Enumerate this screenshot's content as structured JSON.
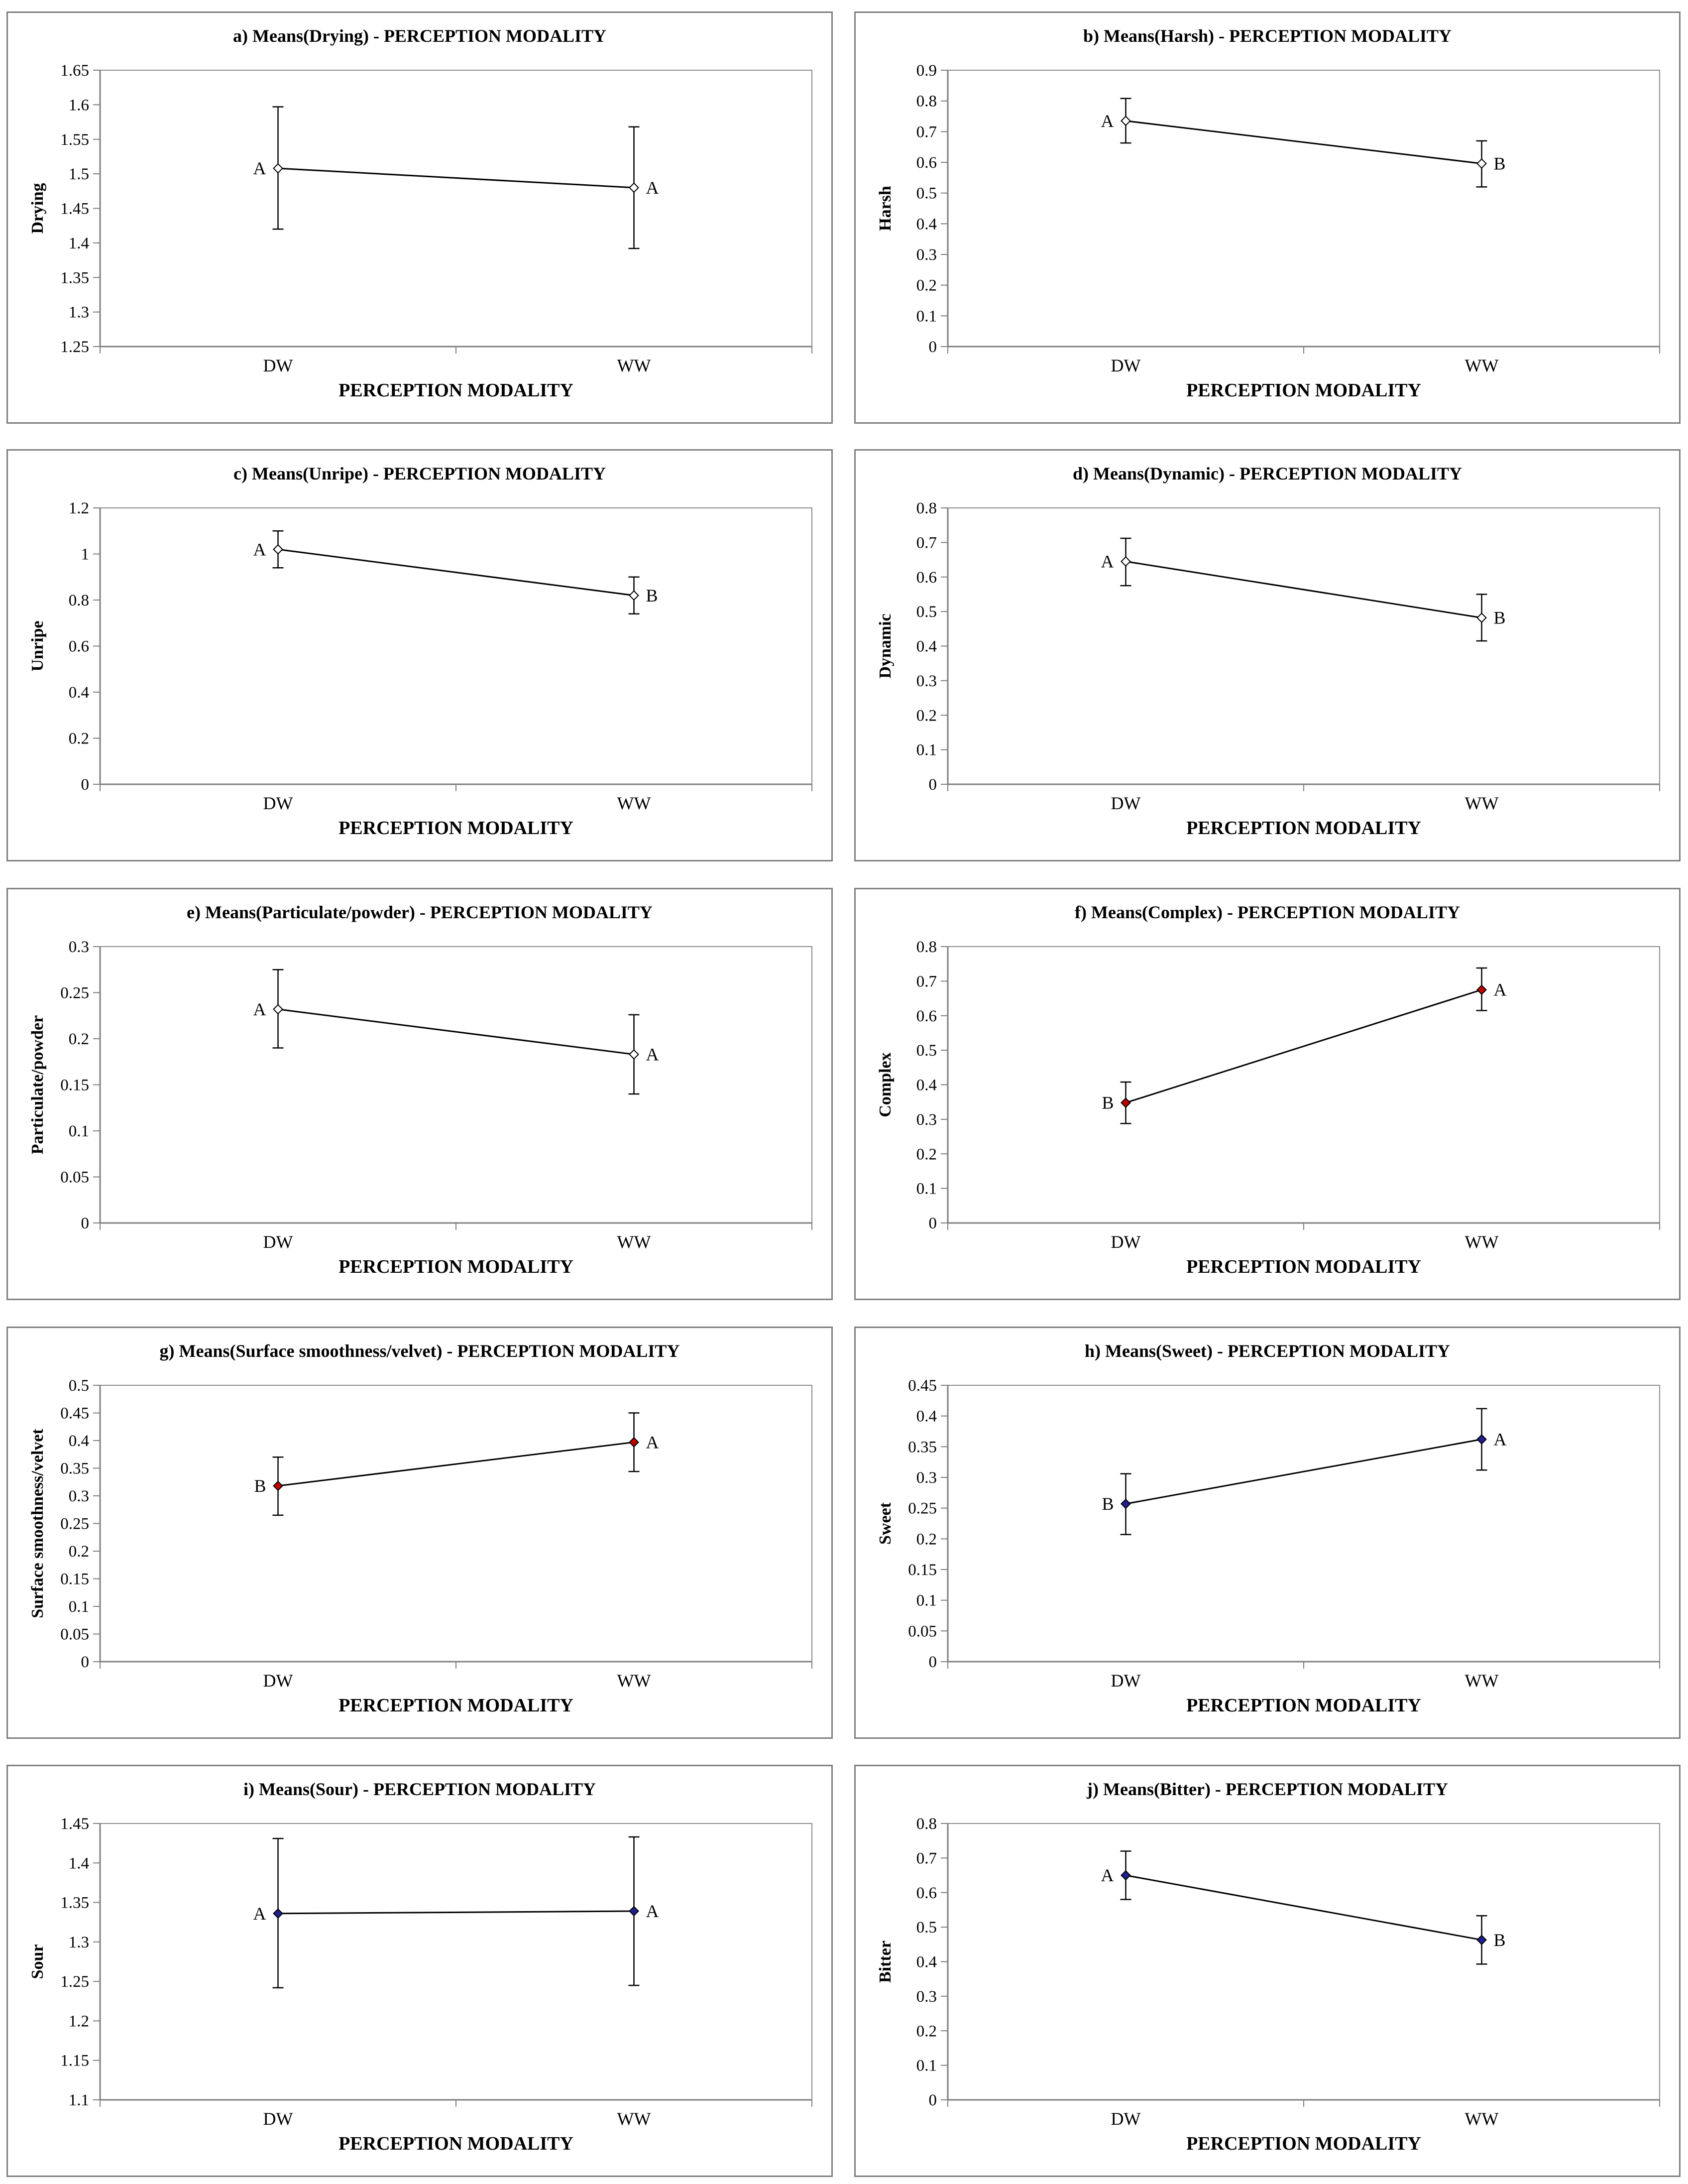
{
  "chart_data": [
    {
      "type": "line",
      "title": "a) Means(Drying) - PERCEPTION MODALITY",
      "xlabel": "PERCEPTION MODALITY",
      "ylabel": "Drying",
      "categories": [
        "DW",
        "WW"
      ],
      "ylim": [
        1.25,
        1.65
      ],
      "yticks": [
        "1.25",
        "1.3",
        "1.35",
        "1.4",
        "1.45",
        "1.5",
        "1.55",
        "1.6",
        "1.65"
      ],
      "values": [
        1.508,
        1.48
      ],
      "error_low": [
        1.42,
        1.392
      ],
      "error_high": [
        1.597,
        1.568
      ],
      "group_letters": [
        "A",
        "A"
      ],
      "marker_fill": "#ffffff"
    },
    {
      "type": "line",
      "title": "b) Means(Harsh) - PERCEPTION MODALITY",
      "xlabel": "PERCEPTION MODALITY",
      "ylabel": "Harsh",
      "categories": [
        "DW",
        "WW"
      ],
      "ylim": [
        0,
        0.9
      ],
      "yticks": [
        "0",
        "0.1",
        "0.2",
        "0.3",
        "0.4",
        "0.5",
        "0.6",
        "0.7",
        "0.8",
        "0.9"
      ],
      "values": [
        0.735,
        0.596
      ],
      "error_low": [
        0.663,
        0.52
      ],
      "error_high": [
        0.808,
        0.67
      ],
      "group_letters": [
        "A",
        "B"
      ],
      "marker_fill": "#ffffff"
    },
    {
      "type": "line",
      "title": "c) Means(Unripe) - PERCEPTION MODALITY",
      "xlabel": "PERCEPTION MODALITY",
      "ylabel": "Unripe",
      "categories": [
        "DW",
        "WW"
      ],
      "ylim": [
        0,
        1.2
      ],
      "yticks": [
        "0",
        "0.2",
        "0.4",
        "0.6",
        "0.8",
        "1",
        "1.2"
      ],
      "values": [
        1.02,
        0.82
      ],
      "error_low": [
        0.94,
        0.74
      ],
      "error_high": [
        1.1,
        0.9
      ],
      "group_letters": [
        "A",
        "B"
      ],
      "marker_fill": "#ffffff"
    },
    {
      "type": "line",
      "title": "d) Means(Dynamic) - PERCEPTION MODALITY",
      "xlabel": "PERCEPTION MODALITY",
      "ylabel": "Dynamic",
      "categories": [
        "DW",
        "WW"
      ],
      "ylim": [
        0,
        0.8
      ],
      "yticks": [
        "0",
        "0.1",
        "0.2",
        "0.3",
        "0.4",
        "0.5",
        "0.6",
        "0.7",
        "0.8"
      ],
      "values": [
        0.645,
        0.482
      ],
      "error_low": [
        0.575,
        0.415
      ],
      "error_high": [
        0.712,
        0.55
      ],
      "group_letters": [
        "A",
        "B"
      ],
      "marker_fill": "#ffffff"
    },
    {
      "type": "line",
      "title": "e) Means(Particulate/powder) - PERCEPTION MODALITY",
      "xlabel": "PERCEPTION MODALITY",
      "ylabel": "Particulate/powder",
      "categories": [
        "DW",
        "WW"
      ],
      "ylim": [
        0,
        0.3
      ],
      "yticks": [
        "0",
        "0.05",
        "0.1",
        "0.15",
        "0.2",
        "0.25",
        "0.3"
      ],
      "values": [
        0.232,
        0.183
      ],
      "error_low": [
        0.19,
        0.14
      ],
      "error_high": [
        0.275,
        0.226
      ],
      "group_letters": [
        "A",
        "A"
      ],
      "marker_fill": "#ffffff"
    },
    {
      "type": "line",
      "title": "f) Means(Complex) - PERCEPTION MODALITY",
      "xlabel": "PERCEPTION MODALITY",
      "ylabel": "Complex",
      "categories": [
        "DW",
        "WW"
      ],
      "ylim": [
        0,
        0.8
      ],
      "yticks": [
        "0",
        "0.1",
        "0.2",
        "0.3",
        "0.4",
        "0.5",
        "0.6",
        "0.7",
        "0.8"
      ],
      "values": [
        0.348,
        0.675
      ],
      "error_low": [
        0.288,
        0.615
      ],
      "error_high": [
        0.408,
        0.738
      ],
      "group_letters": [
        "B",
        "A"
      ],
      "marker_fill": "#c00000"
    },
    {
      "type": "line",
      "title": "g) Means(Surface smoothness/velvet) - PERCEPTION MODALITY",
      "xlabel": "PERCEPTION MODALITY",
      "ylabel": "Surface smoothness/velvet",
      "categories": [
        "DW",
        "WW"
      ],
      "ylim": [
        0,
        0.5
      ],
      "yticks": [
        "0",
        "0.05",
        "0.1",
        "0.15",
        "0.2",
        "0.25",
        "0.3",
        "0.35",
        "0.4",
        "0.45",
        "0.5"
      ],
      "values": [
        0.318,
        0.397
      ],
      "error_low": [
        0.265,
        0.344
      ],
      "error_high": [
        0.37,
        0.45
      ],
      "group_letters": [
        "B",
        "A"
      ],
      "marker_fill": "#c00000"
    },
    {
      "type": "line",
      "title": "h) Means(Sweet) - PERCEPTION MODALITY",
      "xlabel": "PERCEPTION MODALITY",
      "ylabel": "Sweet",
      "categories": [
        "DW",
        "WW"
      ],
      "ylim": [
        0,
        0.45
      ],
      "yticks": [
        "0",
        "0.05",
        "0.1",
        "0.15",
        "0.2",
        "0.25",
        "0.3",
        "0.35",
        "0.4",
        "0.45"
      ],
      "values": [
        0.257,
        0.362
      ],
      "error_low": [
        0.207,
        0.312
      ],
      "error_high": [
        0.306,
        0.412
      ],
      "group_letters": [
        "B",
        "A"
      ],
      "marker_fill": "#1f1f8f"
    },
    {
      "type": "line",
      "title": "i) Means(Sour) - PERCEPTION MODALITY",
      "xlabel": "PERCEPTION MODALITY",
      "ylabel": "Sour",
      "categories": [
        "DW",
        "WW"
      ],
      "ylim": [
        1.1,
        1.45
      ],
      "yticks": [
        "1.1",
        "1.15",
        "1.2",
        "1.25",
        "1.3",
        "1.35",
        "1.4",
        "1.45"
      ],
      "values": [
        1.336,
        1.339
      ],
      "error_low": [
        1.242,
        1.245
      ],
      "error_high": [
        1.431,
        1.433
      ],
      "group_letters": [
        "A",
        "A"
      ],
      "marker_fill": "#1f1f8f"
    },
    {
      "type": "line",
      "title": "j) Means(Bitter) - PERCEPTION MODALITY",
      "xlabel": "PERCEPTION MODALITY",
      "ylabel": "Bitter",
      "categories": [
        "DW",
        "WW"
      ],
      "ylim": [
        0,
        0.8
      ],
      "yticks": [
        "0",
        "0.1",
        "0.2",
        "0.3",
        "0.4",
        "0.5",
        "0.6",
        "0.7",
        "0.8"
      ],
      "values": [
        0.65,
        0.463
      ],
      "error_low": [
        0.58,
        0.393
      ],
      "error_high": [
        0.72,
        0.533
      ],
      "group_letters": [
        "A",
        "B"
      ],
      "marker_fill": "#1f1f8f"
    }
  ]
}
